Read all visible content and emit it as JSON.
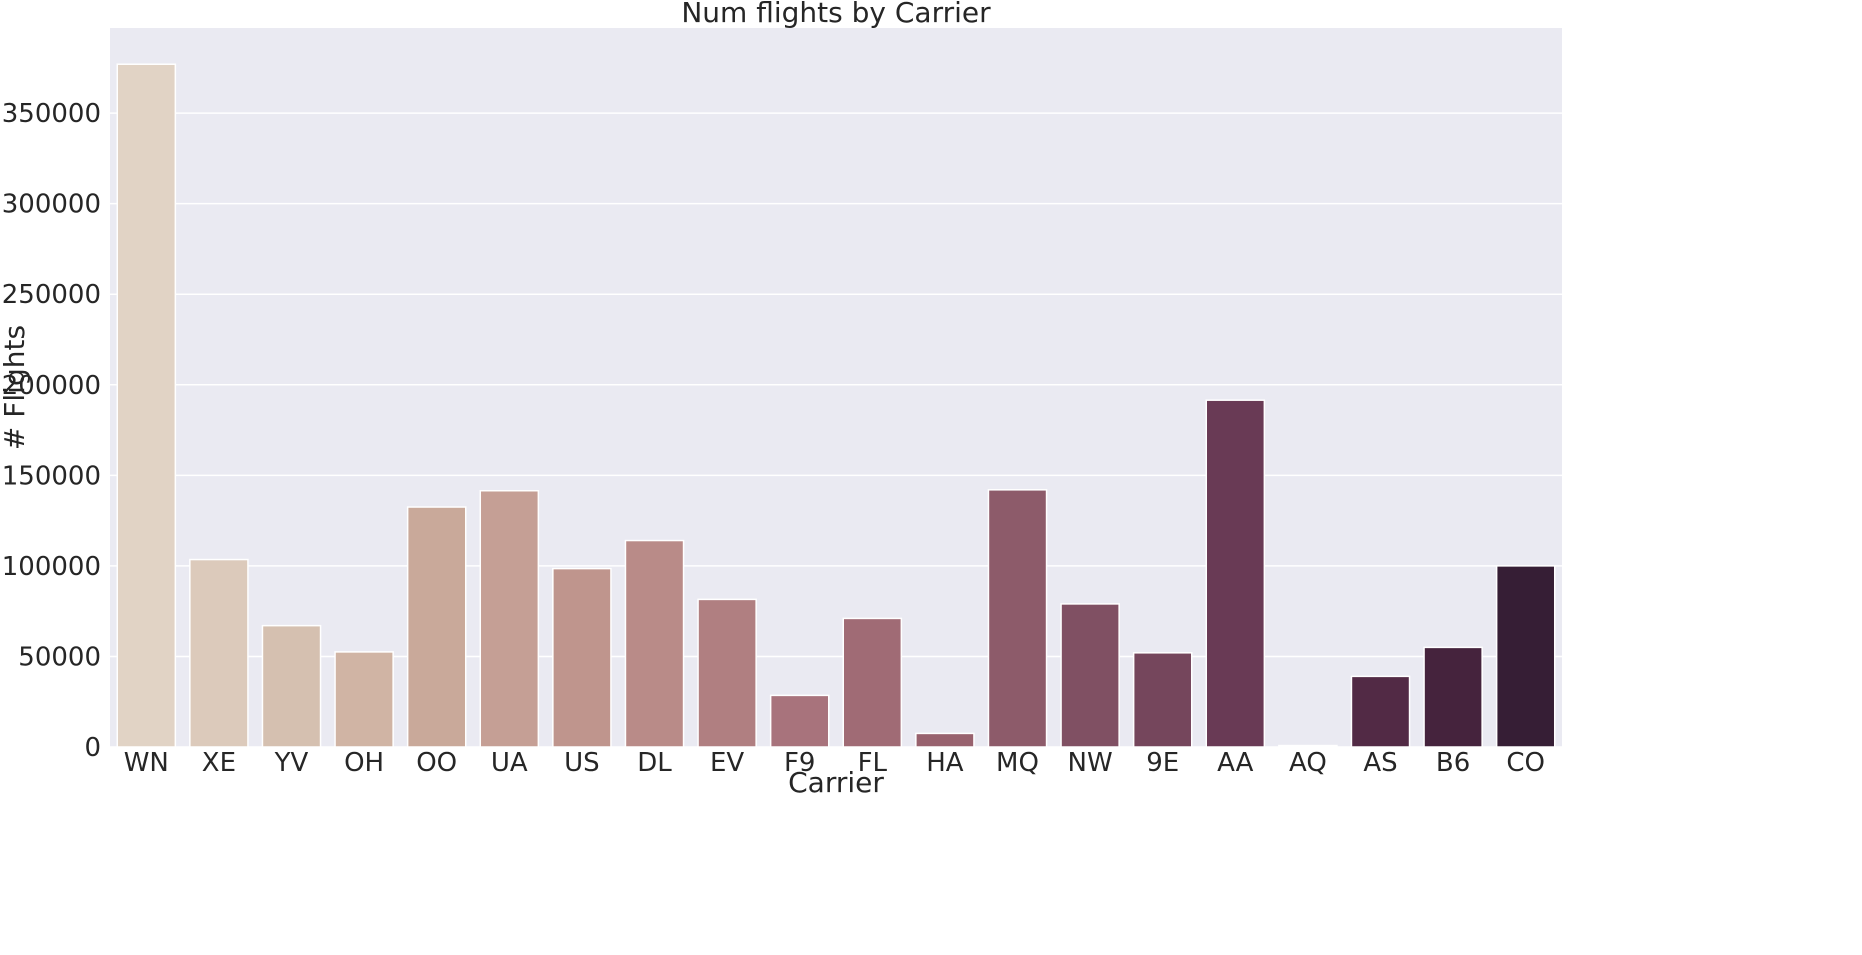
{
  "chart_data": {
    "type": "bar",
    "title": "Num flights by Carrier",
    "xlabel": "Carrier",
    "ylabel": "# Flights",
    "ylim": [
      0,
      397000
    ],
    "yticks": [
      0,
      50000,
      100000,
      150000,
      200000,
      250000,
      300000,
      350000
    ],
    "ytick_labels": [
      "0",
      "50000",
      "100000",
      "150000",
      "200000",
      "250000",
      "300000",
      "350000"
    ],
    "grid": true,
    "categories": [
      "WN",
      "XE",
      "YV",
      "OH",
      "OO",
      "UA",
      "US",
      "DL",
      "EV",
      "F9",
      "FL",
      "HA",
      "MQ",
      "NW",
      "9E",
      "AA",
      "AQ",
      "AS",
      "B6",
      "CO"
    ],
    "values": [
      377000,
      103500,
      67000,
      52500,
      132500,
      141500,
      98500,
      114000,
      81500,
      28500,
      71000,
      7500,
      142000,
      79000,
      52000,
      191500,
      800,
      39000,
      55000,
      100000
    ],
    "colors": [
      "#e1d3c5",
      "#dccabb",
      "#d5c0b0",
      "#d0b4a4",
      "#c9a99a",
      "#c59f95",
      "#bf958d",
      "#b98b88",
      "#b07f81",
      "#a8737c",
      "#a06b75",
      "#98626e",
      "#8d5b6a",
      "#805063",
      "#75465c",
      "#693a55",
      "#5d2f4d",
      "#522a45",
      "#45233d",
      "#361e35"
    ],
    "background": "#eaeaf2",
    "gridline_color": "#ffffff"
  }
}
